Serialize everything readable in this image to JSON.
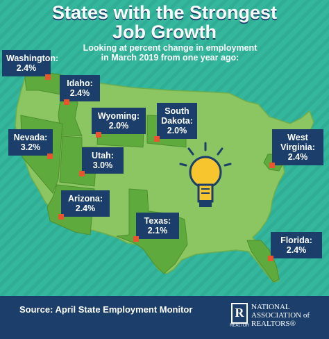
{
  "title_line1": "States with the Strongest",
  "title_line2": "Job Growth",
  "subtitle_line1": "Looking at percent change in employment",
  "subtitle_line2": "in March 2019 from one year ago:",
  "states": [
    {
      "name": "Washington:",
      "value": "2.4%"
    },
    {
      "name": "Idaho:",
      "value": "2.4%"
    },
    {
      "name": "Wyoming:",
      "value": "2.0%"
    },
    {
      "name_line1": "South",
      "name_line2": "Dakota:",
      "value": "2.0%"
    },
    {
      "name": "Nevada:",
      "value": "3.2%"
    },
    {
      "name": "Utah:",
      "value": "3.0%"
    },
    {
      "name_line1": "West",
      "name_line2": "Virginia:",
      "value": "2.4%"
    },
    {
      "name": "Arizona:",
      "value": "2.4%"
    },
    {
      "name": "Texas:",
      "value": "2.1%"
    },
    {
      "name": "Florida:",
      "value": "2.4%"
    }
  ],
  "footer": {
    "source": "Source: April State Employment Monitor",
    "logo_letter": "R",
    "logo_small": "REALTOR",
    "org_line1": "NATIONAL",
    "org_line2": "ASSOCIATION of",
    "org_line3": "REALTORS®"
  },
  "colors": {
    "background": "#34b79d",
    "map_land": "#8cc663",
    "highlight_state": "#5faa3c",
    "label_bg": "#1b3f6a",
    "pin": "#e8552e",
    "bulb": "#f7c52e"
  }
}
